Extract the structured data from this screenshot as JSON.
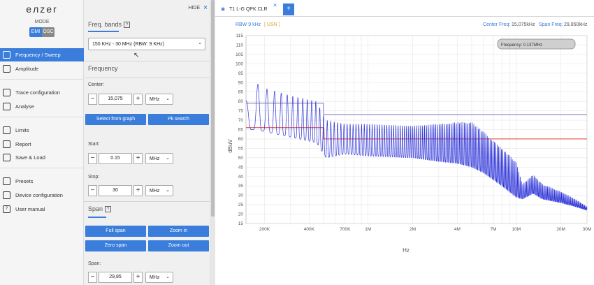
{
  "app": {
    "logo": "eлzer",
    "mode_label": "MODE",
    "mode_emi": "EMI",
    "mode_osc": "OSC"
  },
  "nav": {
    "items": [
      {
        "label": "Frequency / Sweep",
        "icon": "sweep-icon",
        "active": true
      },
      {
        "label": "Amplitude",
        "icon": "amplitude-icon"
      },
      {
        "label": "Trace configuration",
        "icon": "trace-icon"
      },
      {
        "label": "Analyse",
        "icon": "analyse-icon"
      },
      {
        "label": "Limits",
        "icon": "limits-icon"
      },
      {
        "label": "Report",
        "icon": "report-icon"
      },
      {
        "label": "Save & Load",
        "icon": "save-icon"
      },
      {
        "label": "Presets",
        "icon": "presets-icon"
      },
      {
        "label": "Device configuration",
        "icon": "device-icon"
      },
      {
        "label": "User manual",
        "icon": "help-icon"
      }
    ]
  },
  "panel": {
    "hide_label": "HIDE",
    "freq_bands_title": "Freq. bands",
    "freq_bands_value": "150 KHz - 30 MHz (RBW: 9 KHz)",
    "frequency_title": "Frequency",
    "center_label": "Center:",
    "center_value": "15,075",
    "center_unit": "MHz",
    "select_from_graph": "Select from graph",
    "pk_search": "Pk search",
    "start_label": "Start:",
    "start_value": "0.15",
    "start_unit": "MHz",
    "stop_label": "Stop:",
    "stop_value": "30",
    "stop_unit": "MHz",
    "span_title": "Span",
    "full_span": "Full span",
    "zoom_in": "Zoom in",
    "zero_span": "Zero span",
    "zoom_out": "Zoom out",
    "span_label": "Span:",
    "span_value": "29,85",
    "span_unit": "MHz"
  },
  "tabs": {
    "active_tab": "T1 L-G QPK CLR",
    "add_label": "+"
  },
  "plot_header": {
    "rbw_label": "RBW 9 kHz",
    "rbw_tag": "[ USN ]",
    "center_freq_label": "Center Freq:",
    "center_freq_value": "15,075kHz",
    "span_freq_label": "Span Freq:",
    "span_freq_value": "29,850kHz",
    "marker_readout": "Frequency: 0.137MHz"
  },
  "colors": {
    "accent": "#3a7ddb",
    "trace": "#2f35d8",
    "limit_purple": "#7a6fc4",
    "limit_red": "#e23a3a"
  },
  "chart_data": {
    "type": "line",
    "xlabel": "Hz",
    "ylabel": "dBuV",
    "x_scale": "log",
    "xlim": [
      150000,
      30000000
    ],
    "ylim": [
      15,
      115
    ],
    "yticks": [
      15,
      20,
      25,
      30,
      35,
      40,
      45,
      50,
      55,
      60,
      65,
      70,
      75,
      80,
      85,
      90,
      95,
      100,
      105,
      110,
      115
    ],
    "xticks": [
      {
        "value": 200000,
        "label": "200K"
      },
      {
        "value": 400000,
        "label": "400K"
      },
      {
        "value": 700000,
        "label": "700K"
      },
      {
        "value": 1000000,
        "label": "1M"
      },
      {
        "value": 2000000,
        "label": "2M"
      },
      {
        "value": 4000000,
        "label": "4M"
      },
      {
        "value": 7000000,
        "label": "7M"
      },
      {
        "value": 10000000,
        "label": "10M"
      },
      {
        "value": 20000000,
        "label": "20M"
      },
      {
        "value": 30000000,
        "label": "30M"
      }
    ],
    "grid": true,
    "series": [
      {
        "kind": "limit-qp",
        "color": "#7a6fc4",
        "x": [
          150000,
          500000,
          500000,
          30000000
        ],
        "y": [
          79,
          79,
          73,
          73
        ]
      },
      {
        "kind": "limit-avg",
        "color": "#e23a3a",
        "x": [
          150000,
          500000,
          500000,
          30000000
        ],
        "y": [
          66,
          66,
          60,
          60
        ]
      },
      {
        "kind": "trace-envelope",
        "color": "#2f35d8",
        "x": [
          150000,
          165000,
          200000,
          300000,
          450000,
          520000,
          700000,
          1000000,
          2000000,
          3000000,
          4000000,
          5000000,
          6000000,
          8000000,
          10000000,
          11000000,
          13000000,
          15000000,
          20000000,
          25000000,
          30000000
        ],
        "upper": [
          80,
          91,
          87,
          83,
          80,
          70,
          68,
          68,
          67,
          68,
          69,
          69,
          64,
          55,
          48,
          36,
          41,
          36,
          32,
          28,
          24
        ],
        "lower": [
          64,
          65,
          64,
          61,
          58,
          50,
          52,
          51,
          50,
          48,
          47,
          45,
          42,
          35,
          29,
          28,
          31,
          28,
          26,
          24,
          22
        ]
      }
    ]
  }
}
